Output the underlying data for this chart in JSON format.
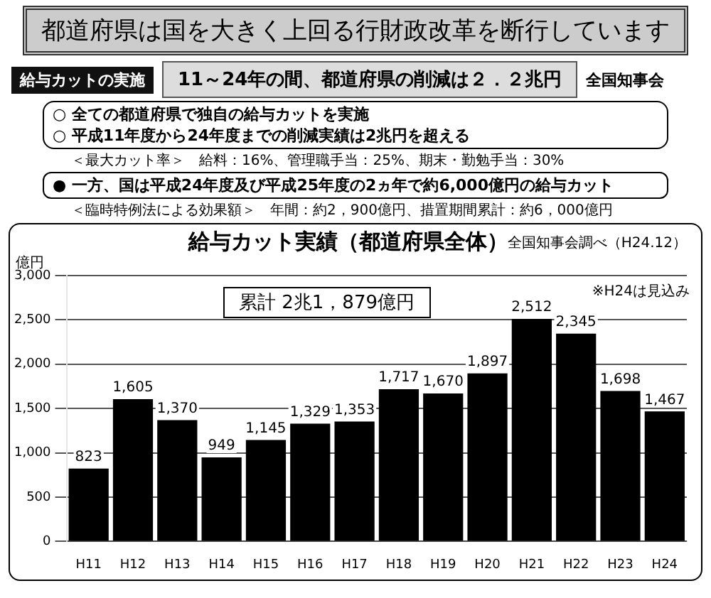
{
  "chart_data": {
    "type": "bar",
    "title": "都道府県は国を大きく上回る行財政改革を断行しています",
    "subtitle": "給与カット実績（都道府県全体）",
    "ylabel": "億円",
    "categories": [
      "H11",
      "H12",
      "H13",
      "H14",
      "H15",
      "H16",
      "H17",
      "H18",
      "H19",
      "H20",
      "H21",
      "H22",
      "H23",
      "H24"
    ],
    "values": [
      823,
      1605,
      1370,
      949,
      1145,
      1329,
      1353,
      1717,
      1670,
      1897,
      2512,
      2345,
      1698,
      1467
    ],
    "color": "#000000",
    "ylim": [
      0,
      3000
    ],
    "yticks": [
      {
        "value": 0,
        "label": "0"
      },
      {
        "value": 500,
        "label": "500"
      },
      {
        "value": 1000,
        "label": "1,000"
      },
      {
        "value": 1500,
        "label": "1,500"
      },
      {
        "value": 2000,
        "label": "2,000"
      },
      {
        "value": 2500,
        "label": "2,500"
      },
      {
        "value": 3000,
        "label": "3,000"
      }
    ],
    "value_labels": [
      "823",
      "1,605",
      "1,370",
      "949",
      "1,145",
      "1,329",
      "1,353",
      "1,717",
      "1,670",
      "1,897",
      "2,512",
      "2,345",
      "1,698",
      "1,467"
    ],
    "grid": "y",
    "legend": false,
    "annotations": [
      "給与カットの実施",
      "11～24年の間、都道府県の削減は２．２兆円",
      "全国知事会",
      "○ 全ての都道府県で独自の給与カットを実施",
      "○ 平成11年度から24年度までの削減実績は2兆円を超える",
      "＜最大カット率＞　給料：16%、管理職手当：25%、期末・勤勉手当：30%",
      "● 一方、国は平成24年度及び平成25年度の2ヵ年で約6,000億円の給与カット",
      "＜臨時特例法による効果額＞　年間：約2，900億円、措置期間累計：約6，000億円",
      "全国知事会調べ（H24.12）",
      "※H24は見込み",
      "累計 2兆1，879億円"
    ]
  }
}
